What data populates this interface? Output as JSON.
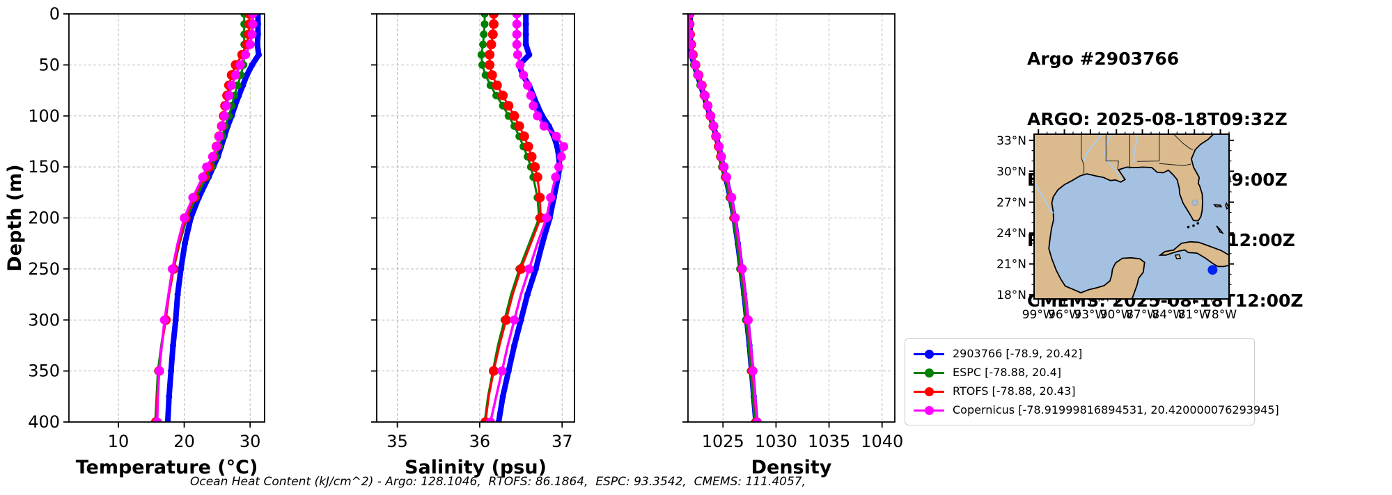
{
  "header": {
    "lines": [
      "Argo #2903766",
      "ARGO: 2025-08-18T09:32Z",
      "ESPC : 2025-08-18T09:00Z",
      "RTOFS: 2025-08-18T12:00Z",
      "CMEMS: 2025-08-18T12:00Z"
    ]
  },
  "axes": {
    "ylabel": "Depth (m)",
    "y_ticks": [
      0,
      50,
      100,
      150,
      200,
      250,
      300,
      350,
      400
    ],
    "ylim": [
      0,
      400
    ]
  },
  "chart_data": [
    {
      "type": "line",
      "profile": "temperature",
      "xlabel": "Temperature (°C)",
      "x_ticks": [
        10,
        20,
        30
      ],
      "xlim": [
        2.5,
        32.2
      ],
      "ylabel": "Depth (m)",
      "ylim": [
        0,
        400
      ],
      "grid": true,
      "depths": [
        0,
        10,
        20,
        30,
        40,
        50,
        60,
        70,
        80,
        90,
        100,
        110,
        120,
        130,
        140,
        150,
        160,
        180,
        200,
        225,
        250,
        275,
        300,
        325,
        350,
        375,
        400
      ],
      "series": [
        {
          "name": "2903766",
          "color": "#0000ff",
          "line_width": 8,
          "marker_size": 4.5,
          "dense_markers": true,
          "values": [
            31.2,
            31.2,
            31.2,
            31.1,
            31.3,
            30.3,
            29.5,
            28.9,
            28.3,
            27.7,
            27.2,
            26.6,
            26.1,
            25.6,
            25.1,
            24.4,
            23.7,
            22.2,
            21.0,
            20.1,
            19.5,
            19.0,
            18.7,
            18.3,
            18.0,
            17.7,
            17.5
          ]
        },
        {
          "name": "ESPC",
          "color": "#008000",
          "line_width": 3,
          "marker_size": 5.5,
          "values": [
            29.1,
            29.1,
            29.1,
            29.1,
            29.1,
            29.0,
            28.6,
            28.1,
            27.6,
            27.2,
            26.8,
            26.2,
            25.8,
            25.3,
            24.8,
            24.2,
            23.4,
            21.8,
            20.4,
            19.3,
            18.4,
            17.7,
            17.1,
            16.5,
            16.0,
            15.8,
            15.6
          ]
        },
        {
          "name": "RTOFS",
          "color": "#ff0000",
          "line_width": 3,
          "marker_size": 7,
          "values": [
            29.9,
            29.9,
            29.8,
            29.5,
            28.8,
            27.8,
            27.2,
            26.8,
            26.5,
            26.2,
            26.0,
            25.7,
            25.3,
            24.9,
            24.4,
            23.8,
            23.0,
            21.5,
            20.2,
            19.2,
            18.4,
            17.7,
            17.2,
            16.6,
            16.2,
            15.9,
            15.7
          ]
        },
        {
          "name": "Copernicus",
          "color": "#ff00ff",
          "line_width": 3.5,
          "marker_size": 6.5,
          "values": [
            30.4,
            30.4,
            30.3,
            30.0,
            29.3,
            28.5,
            27.8,
            27.2,
            26.8,
            26.4,
            26.1,
            25.7,
            25.3,
            24.9,
            24.3,
            23.4,
            22.8,
            21.3,
            20.0,
            19.0,
            18.2,
            17.6,
            17.0,
            16.6,
            16.2,
            16.0,
            15.9
          ]
        }
      ]
    },
    {
      "type": "line",
      "profile": "salinity",
      "xlabel": "Salinity (psu)",
      "x_ticks": [
        35,
        36,
        37
      ],
      "xlim": [
        34.75,
        37.15
      ],
      "ylabel": "Depth (m)",
      "ylim": [
        0,
        400
      ],
      "grid": true,
      "depths": [
        0,
        10,
        20,
        30,
        40,
        50,
        60,
        70,
        80,
        90,
        100,
        110,
        120,
        130,
        140,
        150,
        160,
        180,
        200,
        225,
        250,
        275,
        300,
        325,
        350,
        375,
        400
      ],
      "series": [
        {
          "name": "2903766",
          "color": "#0000ff",
          "line_width": 8,
          "marker_size": 4.5,
          "dense_markers": true,
          "values": [
            36.56,
            36.56,
            36.56,
            36.56,
            36.6,
            36.48,
            36.52,
            36.6,
            36.65,
            36.7,
            36.76,
            36.84,
            36.9,
            36.94,
            36.96,
            36.97,
            36.95,
            36.9,
            36.85,
            36.76,
            36.68,
            36.58,
            36.5,
            36.42,
            36.35,
            36.28,
            36.23
          ]
        },
        {
          "name": "ESPC",
          "color": "#008000",
          "line_width": 3,
          "marker_size": 5.5,
          "values": [
            36.06,
            36.06,
            36.05,
            36.04,
            36.02,
            36.03,
            36.07,
            36.13,
            36.2,
            36.28,
            36.35,
            36.42,
            36.48,
            36.53,
            36.58,
            36.62,
            36.65,
            36.7,
            36.72,
            36.6,
            36.48,
            36.38,
            36.3,
            36.22,
            36.16,
            36.1,
            36.06
          ]
        },
        {
          "name": "RTOFS",
          "color": "#ff0000",
          "line_width": 3,
          "marker_size": 7,
          "values": [
            36.17,
            36.17,
            36.16,
            36.14,
            36.12,
            36.12,
            36.15,
            36.21,
            36.28,
            36.35,
            36.42,
            36.48,
            36.54,
            36.59,
            36.63,
            36.67,
            36.7,
            36.73,
            36.74,
            36.62,
            36.5,
            36.4,
            36.32,
            36.24,
            36.17,
            36.11,
            36.07
          ]
        },
        {
          "name": "Copernicus",
          "color": "#ff00ff",
          "line_width": 3.5,
          "marker_size": 6.5,
          "values": [
            36.45,
            36.45,
            36.45,
            36.45,
            36.46,
            36.49,
            36.53,
            36.58,
            36.62,
            36.65,
            36.7,
            36.78,
            36.93,
            37.02,
            36.99,
            36.96,
            36.92,
            36.86,
            36.81,
            36.7,
            36.6,
            36.5,
            36.42,
            36.34,
            36.27,
            36.2,
            36.13
          ]
        }
      ]
    },
    {
      "type": "line",
      "profile": "density",
      "xlabel": "Density",
      "x_ticks": [
        1025,
        1030,
        1035,
        1040
      ],
      "xlim": [
        1021.7,
        1041.2
      ],
      "ylabel": "Depth (m)",
      "ylim": [
        0,
        400
      ],
      "grid": true,
      "depths": [
        0,
        10,
        20,
        30,
        40,
        50,
        60,
        70,
        80,
        90,
        100,
        110,
        120,
        130,
        140,
        150,
        160,
        180,
        200,
        225,
        250,
        275,
        300,
        325,
        350,
        375,
        400
      ],
      "series": [
        {
          "name": "2903766",
          "color": "#0000ff",
          "line_width": 8,
          "marker_size": 4.5,
          "dense_markers": true,
          "values": [
            1021.9,
            1021.9,
            1021.9,
            1021.95,
            1022.0,
            1022.3,
            1022.6,
            1022.9,
            1023.2,
            1023.5,
            1023.8,
            1024.1,
            1024.35,
            1024.6,
            1024.8,
            1025.0,
            1025.25,
            1025.7,
            1026.05,
            1026.4,
            1026.7,
            1027.0,
            1027.25,
            1027.5,
            1027.7,
            1027.9,
            1028.1
          ]
        },
        {
          "name": "ESPC",
          "color": "#008000",
          "line_width": 3,
          "marker_size": 5.5,
          "values": [
            1021.75,
            1021.75,
            1021.78,
            1021.85,
            1022.0,
            1022.25,
            1022.55,
            1022.85,
            1023.15,
            1023.45,
            1023.72,
            1024.0,
            1024.25,
            1024.5,
            1024.7,
            1024.9,
            1025.15,
            1025.6,
            1025.95,
            1026.3,
            1026.6,
            1026.9,
            1027.15,
            1027.4,
            1027.6,
            1027.8,
            1028.0
          ]
        },
        {
          "name": "RTOFS",
          "color": "#ff0000",
          "line_width": 3,
          "marker_size": 7,
          "values": [
            1021.85,
            1021.85,
            1021.9,
            1022.0,
            1022.15,
            1022.4,
            1022.7,
            1023.0,
            1023.28,
            1023.55,
            1023.82,
            1024.1,
            1024.35,
            1024.6,
            1024.82,
            1025.05,
            1025.3,
            1025.78,
            1026.12,
            1026.48,
            1026.78,
            1027.08,
            1027.33,
            1027.58,
            1027.78,
            1027.98,
            1028.18
          ]
        },
        {
          "name": "Copernicus",
          "color": "#ff00ff",
          "line_width": 3.5,
          "marker_size": 6.5,
          "values": [
            1021.8,
            1021.8,
            1021.85,
            1021.95,
            1022.1,
            1022.38,
            1022.68,
            1022.98,
            1023.28,
            1023.56,
            1023.84,
            1024.12,
            1024.38,
            1024.64,
            1024.86,
            1025.1,
            1025.35,
            1025.82,
            1026.16,
            1026.52,
            1026.82,
            1027.12,
            1027.38,
            1027.62,
            1027.82,
            1028.02,
            1028.22
          ]
        }
      ]
    }
  ],
  "legend": {
    "entries": [
      {
        "label": "2903766 [-78.9, 20.42]",
        "color": "#0000ff"
      },
      {
        "label": "ESPC [-78.88, 20.4]",
        "color": "#008000"
      },
      {
        "label": "RTOFS [-78.88, 20.43]",
        "color": "#ff0000"
      },
      {
        "label": "Copernicus [-78.91999816894531, 20.420000076293945]",
        "color": "#ff00ff"
      }
    ]
  },
  "map": {
    "lat_tick_labels": [
      "33°N",
      "30°N",
      "27°N",
      "24°N",
      "21°N",
      "18°N"
    ],
    "lat_tick_values": [
      33,
      30,
      27,
      24,
      21,
      18
    ],
    "lon_tick_labels": [
      "99°W",
      "96°W",
      "93°W",
      "90°W",
      "87°W",
      "84°W",
      "81°W",
      "78°W"
    ],
    "lon_tick_values": [
      -99,
      -96,
      -93,
      -90,
      -87,
      -84,
      -81,
      -78
    ],
    "lon_range": [
      -99.5,
      -77.0
    ],
    "lat_range": [
      17.6,
      33.6
    ],
    "marker": {
      "lon": -78.9,
      "lat": 20.42,
      "color": "#0022ee"
    },
    "colors": {
      "land": "#dbba8e",
      "water": "#a4c1e2",
      "coast": "#000000",
      "river": "#a9cdf0",
      "border": "#1a1a1a"
    }
  },
  "footer": {
    "text": "Ocean Heat Content (kJ/cm^2) - Argo: 128.1046,  RTOFS: 86.1864,  ESPC: 93.3542,  CMEMS: 111.4057,"
  }
}
